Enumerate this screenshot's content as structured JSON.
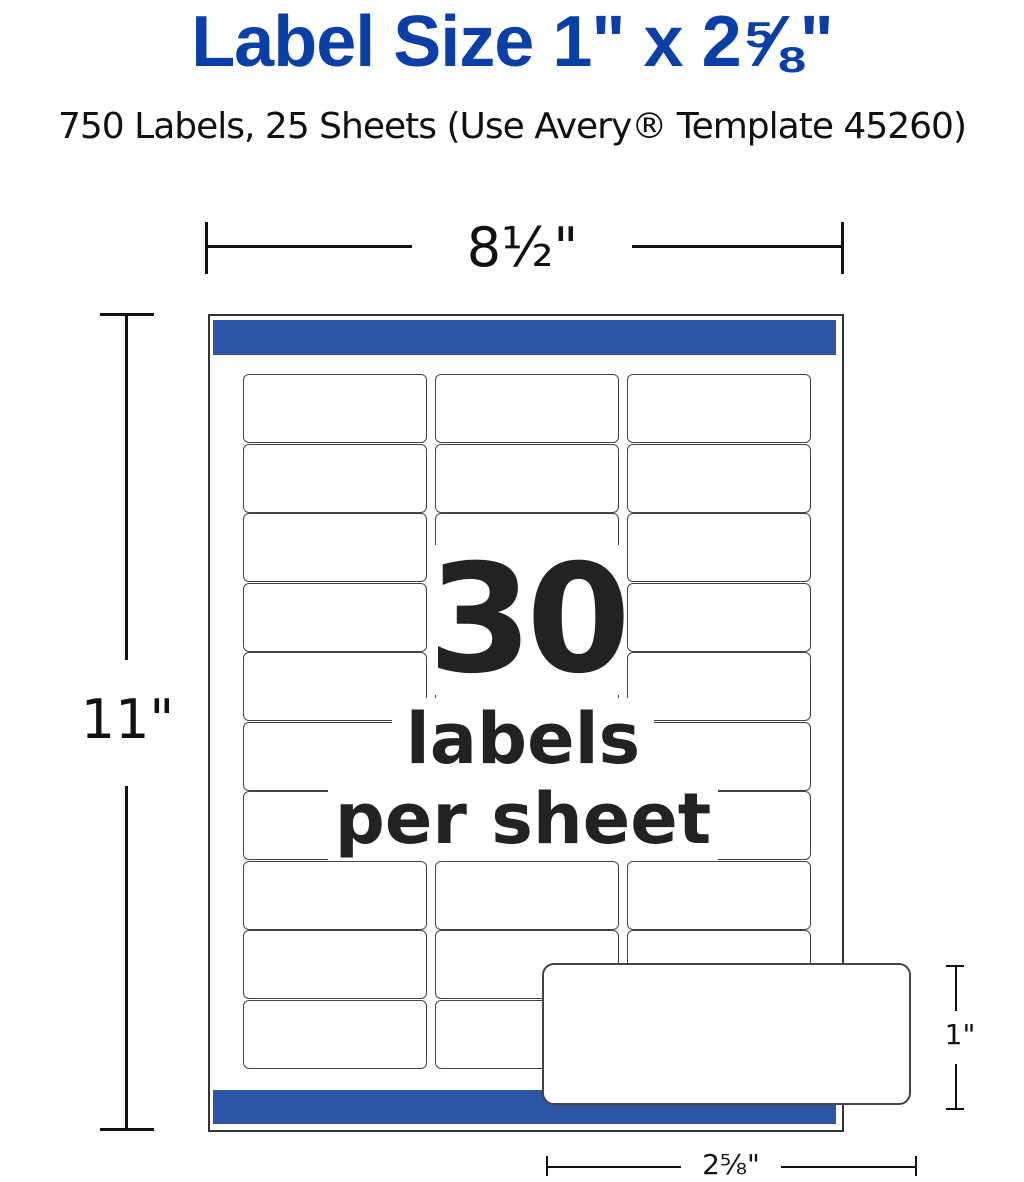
{
  "title": "Label Size 1\" x 2⅝\"",
  "subtitle": "750 Labels, 25 Sheets (Use Avery® Template 45260)",
  "dimensions": {
    "sheet_width": "8½\"",
    "sheet_height": "11\"",
    "label_height": "1\"",
    "label_width": "2⅝\""
  },
  "sheet": {
    "count": "30",
    "line1": "labels",
    "line2": "per sheet",
    "columns": 3,
    "rows": 10
  },
  "colors": {
    "title": "#0a3ea8",
    "sheet_bar": "#2d55a6"
  }
}
